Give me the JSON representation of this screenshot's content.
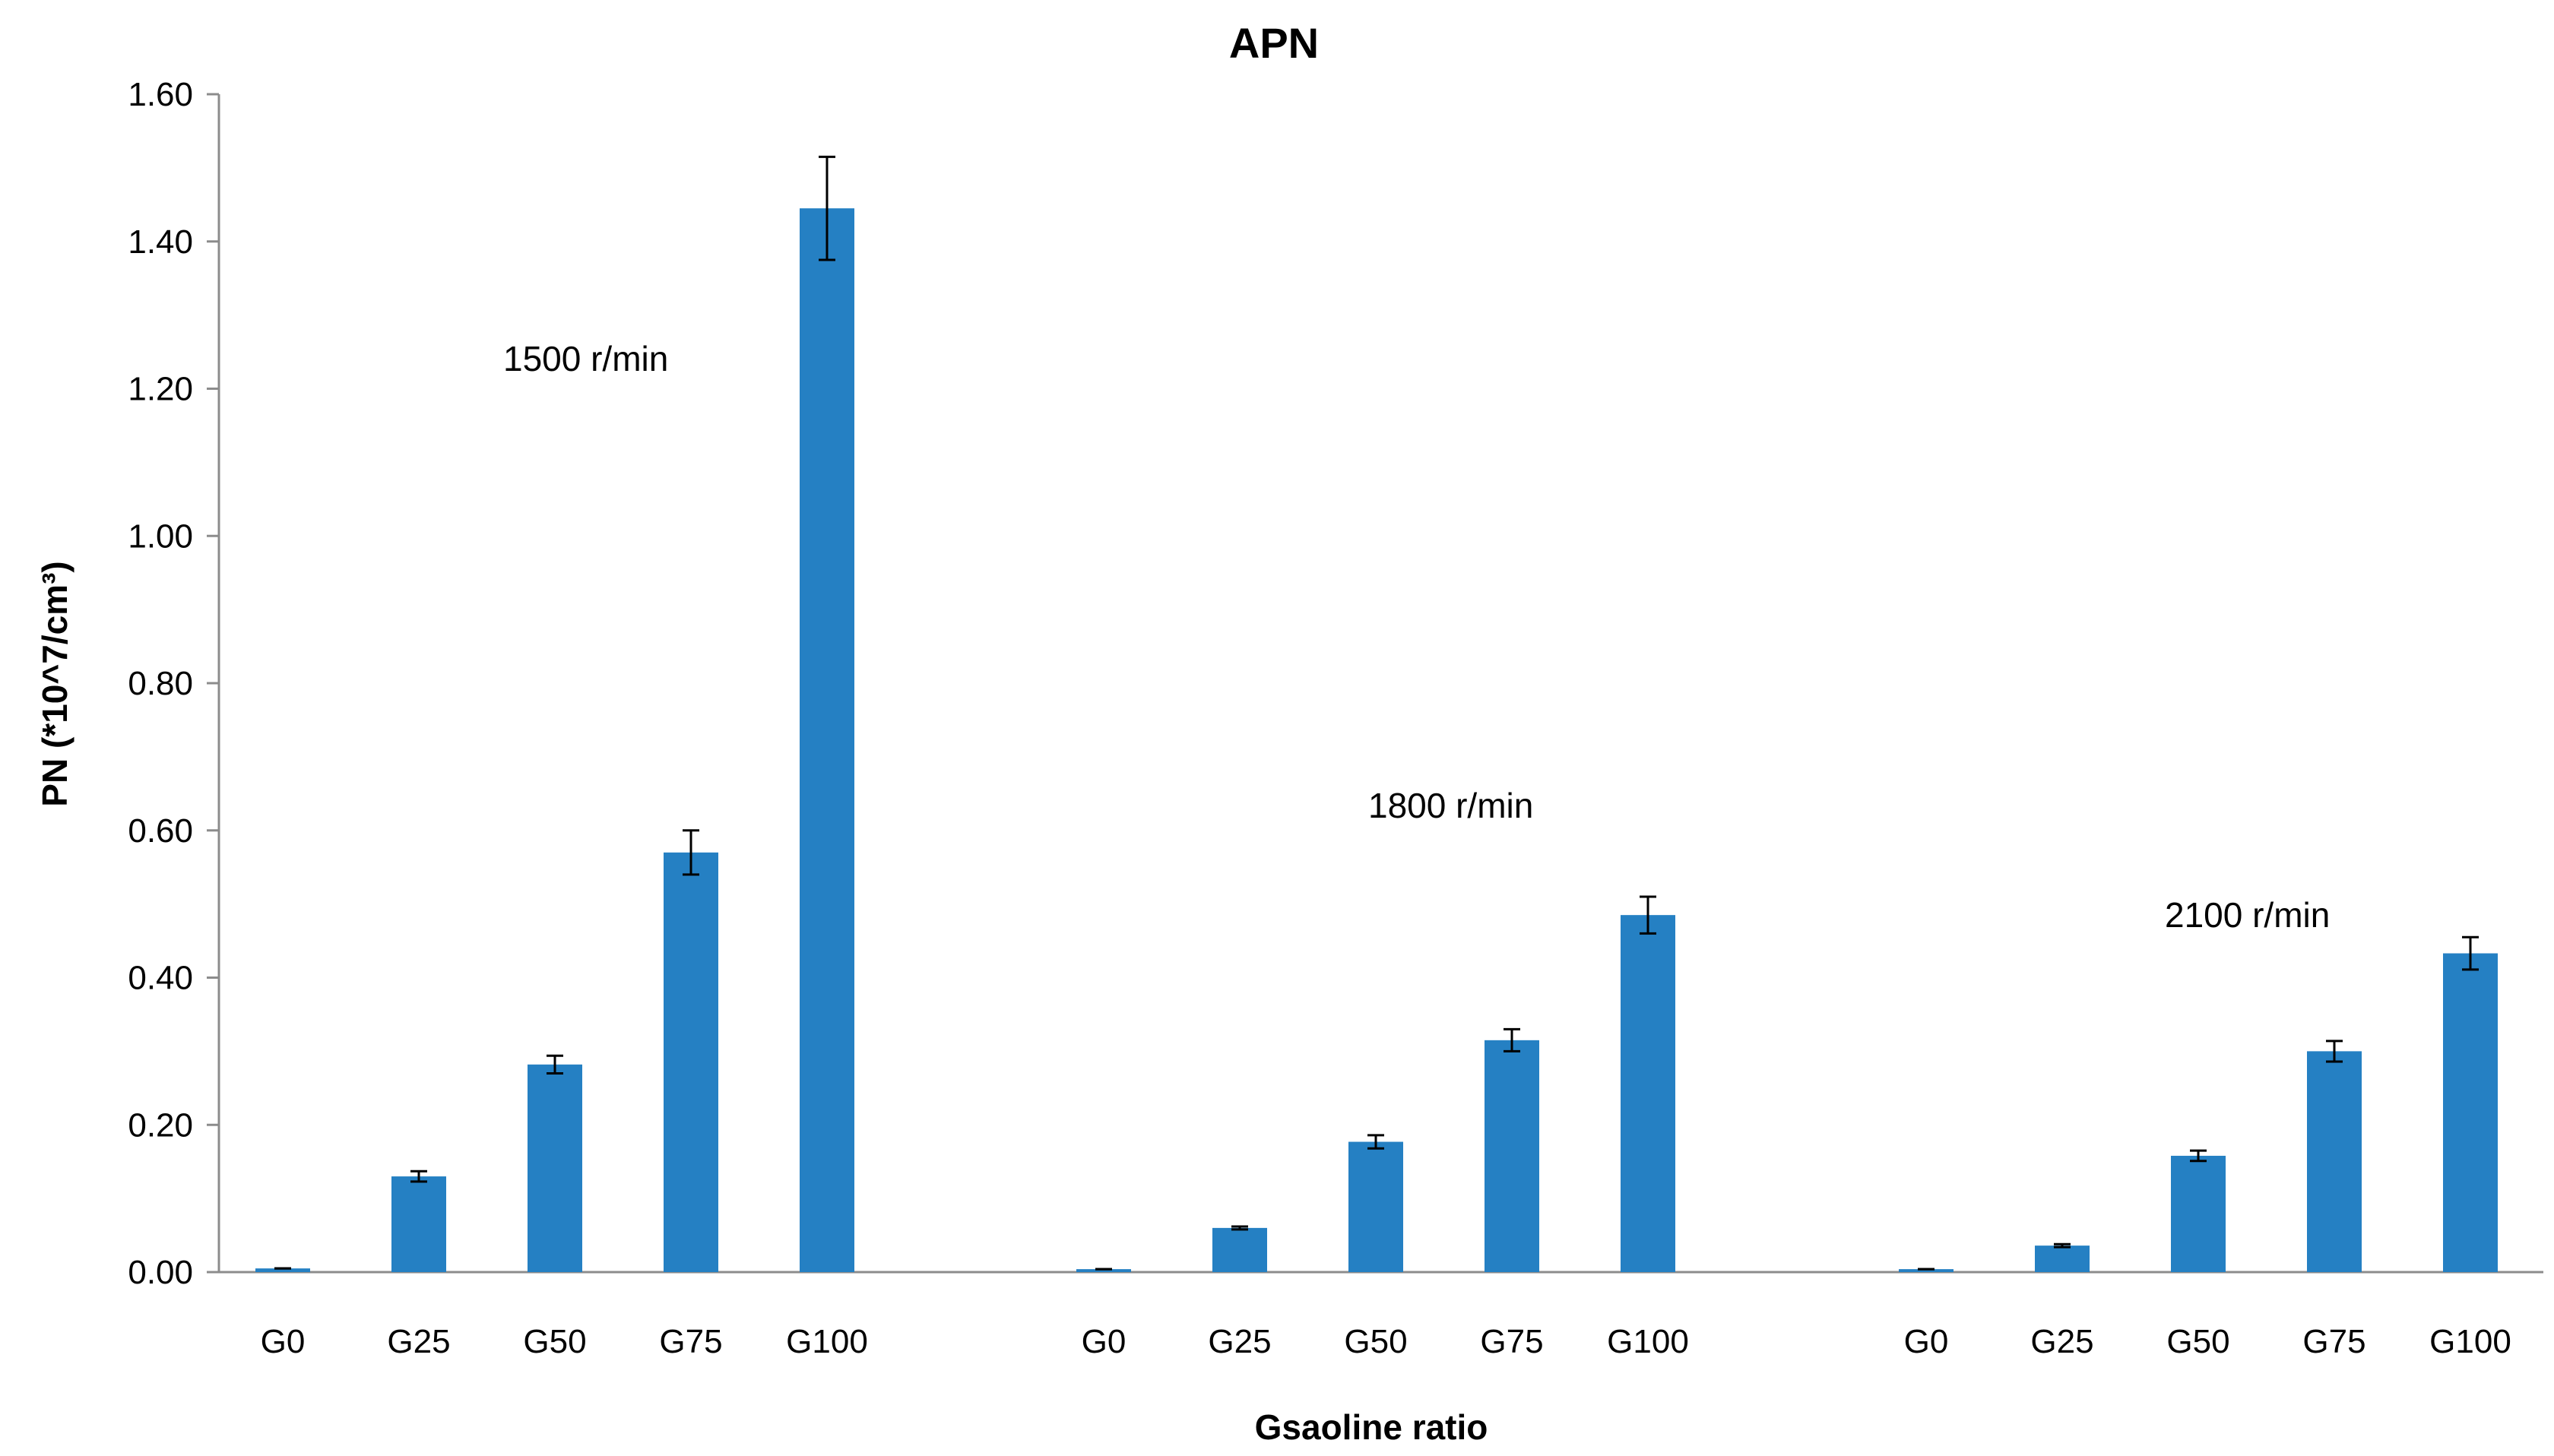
{
  "chart_data": {
    "type": "bar",
    "title": "APN",
    "xlabel": "Gsaoline ratio",
    "ylabel": "PN (*10^7/cm³)",
    "ylim": [
      0,
      1.6
    ],
    "yticks": [
      "0.00",
      "0.20",
      "0.40",
      "0.60",
      "0.80",
      "1.00",
      "1.20",
      "1.40",
      "1.60"
    ],
    "grid": false,
    "legend": "none",
    "bar_color": "#2580c3",
    "error_bar_color": "#000000",
    "groups": [
      {
        "annotation": "1500 r/min",
        "bars": [
          {
            "label": "G0",
            "value": 0.005,
            "error": 0.0
          },
          {
            "label": "G25",
            "value": 0.13,
            "error": 0.007
          },
          {
            "label": "G50",
            "value": 0.282,
            "error": 0.012
          },
          {
            "label": "G75",
            "value": 0.57,
            "error": 0.03
          },
          {
            "label": "G100",
            "value": 1.445,
            "error": 0.07
          }
        ]
      },
      {
        "annotation": "1800 r/min",
        "bars": [
          {
            "label": "G0",
            "value": 0.004,
            "error": 0.0
          },
          {
            "label": "G25",
            "value": 0.06,
            "error": 0.002
          },
          {
            "label": "G50",
            "value": 0.177,
            "error": 0.009
          },
          {
            "label": "G75",
            "value": 0.315,
            "error": 0.015
          },
          {
            "label": "G100",
            "value": 0.485,
            "error": 0.025
          }
        ]
      },
      {
        "annotation": "2100 r/min",
        "bars": [
          {
            "label": "G0",
            "value": 0.004,
            "error": 0.0
          },
          {
            "label": "G25",
            "value": 0.036,
            "error": 0.002
          },
          {
            "label": "G50",
            "value": 0.158,
            "error": 0.007
          },
          {
            "label": "G75",
            "value": 0.3,
            "error": 0.014
          },
          {
            "label": "G100",
            "value": 0.433,
            "error": 0.022
          }
        ]
      }
    ]
  }
}
